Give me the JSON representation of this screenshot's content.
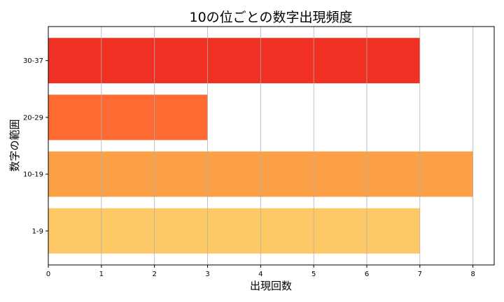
{
  "chart_data": {
    "type": "bar",
    "orientation": "horizontal",
    "title": "10の位ごとの数字出現頻度",
    "xlabel": "出現回数",
    "ylabel": "数字の範囲",
    "categories": [
      "1-9",
      "10-19",
      "20-29",
      "30-37"
    ],
    "values": [
      7,
      8,
      3,
      7
    ],
    "colors": [
      "#fdc967",
      "#fca048",
      "#fd6a32",
      "#ef3022"
    ],
    "xlim": [
      0,
      8.4
    ],
    "xticks": [
      0,
      1,
      2,
      3,
      4,
      5,
      6,
      7,
      8
    ],
    "grid": "x"
  }
}
